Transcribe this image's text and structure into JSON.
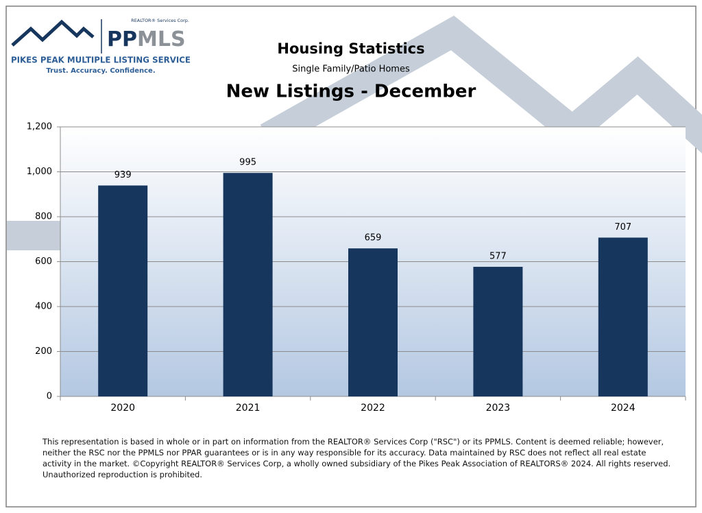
{
  "logo": {
    "corp": "REALTOR® Services Corp.",
    "brand_primary": "PP",
    "brand_secondary": "MLS",
    "name": "PIKES PEAK MULTIPLE LISTING SERVICE",
    "tagline": "Trust. Accuracy. Confidence."
  },
  "chart_data": {
    "type": "bar",
    "title": "Housing Statistics",
    "subtitle": "Single Family/Patio Homes",
    "heading": "New Listings - December",
    "categories": [
      "2020",
      "2021",
      "2022",
      "2023",
      "2024"
    ],
    "values": [
      939,
      995,
      659,
      577,
      707
    ],
    "color": "#17365d",
    "ylim": [
      0,
      1200
    ],
    "yticks": [
      0,
      200,
      400,
      600,
      800,
      {
        "value": 1000,
        "label": "1,000"
      },
      {
        "value": 1200,
        "label": "1,200"
      }
    ],
    "grid": true
  },
  "footer": "This representation is based in whole or in part on information from the REALTOR® Services Corp (\"RSC\") or its PPMLS. Content is deemed reliable; however, neither the RSC nor the PPMLS nor PPAR guarantees or is in any way responsible for its accuracy. Data maintained by RSC does not reflect all real estate activity in the market. ©Copyright REALTOR® Services Corp, a wholly owned subsidiary of the Pikes Peak Association of REALTORS® 2024.  All rights reserved. Unauthorized reproduction is prohibited."
}
